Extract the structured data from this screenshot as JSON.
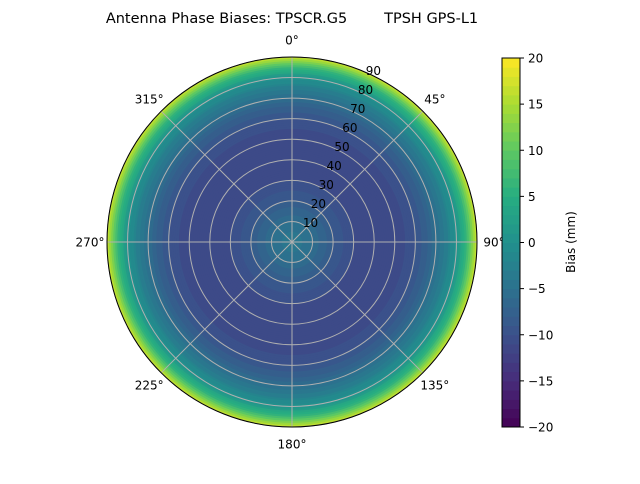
{
  "chart_data": {
    "type": "heatmap",
    "projection": "polar",
    "title": "Antenna Phase Biases: TPSCR.G5        TPSH GPS-L1",
    "theta_direction": "clockwise",
    "theta_zero": "north",
    "theta_tick_labels": [
      "0°",
      "45°",
      "90°",
      "135°",
      "180°",
      "225°",
      "270°",
      "315°"
    ],
    "r_tick_labels": [
      "10",
      "20",
      "30",
      "40",
      "50",
      "60",
      "70",
      "80",
      "90"
    ],
    "rlim": [
      0,
      90
    ],
    "grid": true,
    "colormap": "viridis",
    "colorbar": {
      "label": "Bias (mm)",
      "range": [
        -20,
        20
      ],
      "tick_labels": [
        "20",
        "15",
        "10",
        "5",
        "0",
        "−5",
        "−10",
        "−15",
        "−20"
      ],
      "tick_values": [
        20,
        15,
        10,
        5,
        0,
        -5,
        -10,
        -15,
        -20
      ]
    },
    "radial_profile": {
      "zenith_deg": [
        0,
        5,
        10,
        15,
        20,
        25,
        30,
        35,
        40,
        45,
        50,
        55,
        60,
        65,
        70,
        75,
        80,
        85,
        90
      ],
      "bias_mm": [
        -3,
        -4,
        -5,
        -6.5,
        -8,
        -9,
        -10,
        -10.5,
        -11,
        -11,
        -11,
        -10,
        -9,
        -7.5,
        -5,
        -2.5,
        1,
        7,
        17
      ]
    }
  }
}
